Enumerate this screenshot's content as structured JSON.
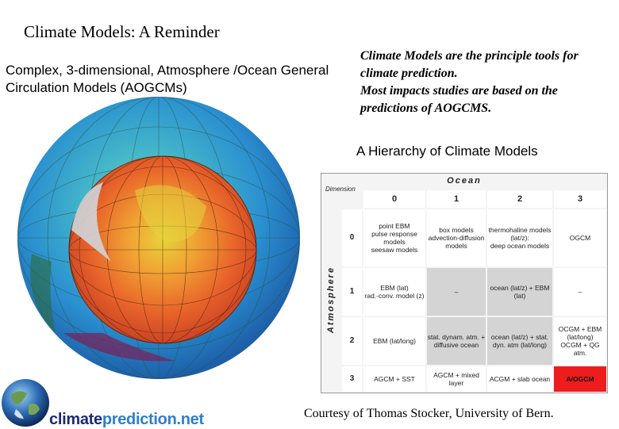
{
  "title": "Climate Models: A Reminder",
  "subtitle": "Complex, 3-dimensional, Atmosphere /Ocean General Circulation Models (AOGCMs)",
  "note": {
    "line1": "Climate Models are the principle tools for climate prediction.",
    "line2": "Most impacts studies are based on the predictions of AOGCMS."
  },
  "hierarchy_title": "A  Hierarchy of Climate Models",
  "table": {
    "ocean_label": "Ocean",
    "atmosphere_label": "Atmosphere",
    "dimension_label": "Dimension",
    "columns": [
      "0",
      "1",
      "2",
      "3"
    ],
    "rows": [
      {
        "dim": "0",
        "cells": [
          "point EBM\npulse response models\nseesaw models",
          "box models\nadvection-diffusion models",
          "thermohaline models (lat/z):\ndeep ocean models",
          "OGCM"
        ]
      },
      {
        "dim": "1",
        "cells": [
          "EBM (lat)\nrad.-conv. model (z)",
          "–",
          "ocean (lat/z) + EBM (lat)",
          "–"
        ]
      },
      {
        "dim": "2",
        "cells": [
          "EBM (lat/long)",
          "stat. dynam. atm. + diffusive ocean",
          "ocean (lat/z) + stat. dyn. atm (lat/long)",
          "OCGM + EBM (lat/long)\nOCGM + QG atm."
        ]
      },
      {
        "dim": "3",
        "cells": [
          "AGCM + SST",
          "AGCM + mixed layer",
          "ACGM + slab ocean",
          "A/OGCM"
        ]
      }
    ]
  },
  "credit": "Courtesy of Thomas Stocker, University of Bern.",
  "logo": {
    "part1": "climate",
    "part2": "prediction.net"
  },
  "colors": {
    "highlight": "#ee1c1c",
    "shaded": "#d4d4d4",
    "logo_dark": "#1a2a78",
    "logo_light": "#2e7fc8"
  }
}
